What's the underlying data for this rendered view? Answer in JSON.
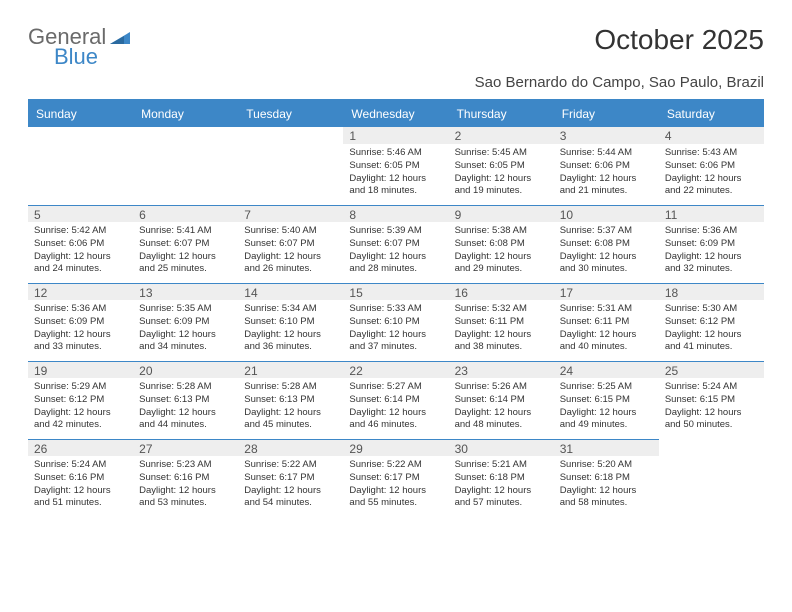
{
  "logo": {
    "text1": "General",
    "text2": "Blue",
    "color_gray": "#6a6a6a",
    "color_blue": "#3d87c7"
  },
  "title": "October 2025",
  "subtitle": "Sao Bernardo do Campo, Sao Paulo, Brazil",
  "day_headers": [
    "Sunday",
    "Monday",
    "Tuesday",
    "Wednesday",
    "Thursday",
    "Friday",
    "Saturday"
  ],
  "colors": {
    "header_bg": "#3d87c7",
    "header_text": "#ffffff",
    "daynum_bg": "#eeeeee",
    "rule": "#3d87c7",
    "text": "#333333"
  },
  "weeks": [
    [
      null,
      null,
      null,
      {
        "d": "1",
        "sr": "5:46 AM",
        "ss": "6:05 PM",
        "dl": "12 hours and 18 minutes."
      },
      {
        "d": "2",
        "sr": "5:45 AM",
        "ss": "6:05 PM",
        "dl": "12 hours and 19 minutes."
      },
      {
        "d": "3",
        "sr": "5:44 AM",
        "ss": "6:06 PM",
        "dl": "12 hours and 21 minutes."
      },
      {
        "d": "4",
        "sr": "5:43 AM",
        "ss": "6:06 PM",
        "dl": "12 hours and 22 minutes."
      }
    ],
    [
      {
        "d": "5",
        "sr": "5:42 AM",
        "ss": "6:06 PM",
        "dl": "12 hours and 24 minutes."
      },
      {
        "d": "6",
        "sr": "5:41 AM",
        "ss": "6:07 PM",
        "dl": "12 hours and 25 minutes."
      },
      {
        "d": "7",
        "sr": "5:40 AM",
        "ss": "6:07 PM",
        "dl": "12 hours and 26 minutes."
      },
      {
        "d": "8",
        "sr": "5:39 AM",
        "ss": "6:07 PM",
        "dl": "12 hours and 28 minutes."
      },
      {
        "d": "9",
        "sr": "5:38 AM",
        "ss": "6:08 PM",
        "dl": "12 hours and 29 minutes."
      },
      {
        "d": "10",
        "sr": "5:37 AM",
        "ss": "6:08 PM",
        "dl": "12 hours and 30 minutes."
      },
      {
        "d": "11",
        "sr": "5:36 AM",
        "ss": "6:09 PM",
        "dl": "12 hours and 32 minutes."
      }
    ],
    [
      {
        "d": "12",
        "sr": "5:36 AM",
        "ss": "6:09 PM",
        "dl": "12 hours and 33 minutes."
      },
      {
        "d": "13",
        "sr": "5:35 AM",
        "ss": "6:09 PM",
        "dl": "12 hours and 34 minutes."
      },
      {
        "d": "14",
        "sr": "5:34 AM",
        "ss": "6:10 PM",
        "dl": "12 hours and 36 minutes."
      },
      {
        "d": "15",
        "sr": "5:33 AM",
        "ss": "6:10 PM",
        "dl": "12 hours and 37 minutes."
      },
      {
        "d": "16",
        "sr": "5:32 AM",
        "ss": "6:11 PM",
        "dl": "12 hours and 38 minutes."
      },
      {
        "d": "17",
        "sr": "5:31 AM",
        "ss": "6:11 PM",
        "dl": "12 hours and 40 minutes."
      },
      {
        "d": "18",
        "sr": "5:30 AM",
        "ss": "6:12 PM",
        "dl": "12 hours and 41 minutes."
      }
    ],
    [
      {
        "d": "19",
        "sr": "5:29 AM",
        "ss": "6:12 PM",
        "dl": "12 hours and 42 minutes."
      },
      {
        "d": "20",
        "sr": "5:28 AM",
        "ss": "6:13 PM",
        "dl": "12 hours and 44 minutes."
      },
      {
        "d": "21",
        "sr": "5:28 AM",
        "ss": "6:13 PM",
        "dl": "12 hours and 45 minutes."
      },
      {
        "d": "22",
        "sr": "5:27 AM",
        "ss": "6:14 PM",
        "dl": "12 hours and 46 minutes."
      },
      {
        "d": "23",
        "sr": "5:26 AM",
        "ss": "6:14 PM",
        "dl": "12 hours and 48 minutes."
      },
      {
        "d": "24",
        "sr": "5:25 AM",
        "ss": "6:15 PM",
        "dl": "12 hours and 49 minutes."
      },
      {
        "d": "25",
        "sr": "5:24 AM",
        "ss": "6:15 PM",
        "dl": "12 hours and 50 minutes."
      }
    ],
    [
      {
        "d": "26",
        "sr": "5:24 AM",
        "ss": "6:16 PM",
        "dl": "12 hours and 51 minutes."
      },
      {
        "d": "27",
        "sr": "5:23 AM",
        "ss": "6:16 PM",
        "dl": "12 hours and 53 minutes."
      },
      {
        "d": "28",
        "sr": "5:22 AM",
        "ss": "6:17 PM",
        "dl": "12 hours and 54 minutes."
      },
      {
        "d": "29",
        "sr": "5:22 AM",
        "ss": "6:17 PM",
        "dl": "12 hours and 55 minutes."
      },
      {
        "d": "30",
        "sr": "5:21 AM",
        "ss": "6:18 PM",
        "dl": "12 hours and 57 minutes."
      },
      {
        "d": "31",
        "sr": "5:20 AM",
        "ss": "6:18 PM",
        "dl": "12 hours and 58 minutes."
      },
      null
    ]
  ],
  "labels": {
    "sunrise": "Sunrise:",
    "sunset": "Sunset:",
    "daylight": "Daylight:"
  }
}
